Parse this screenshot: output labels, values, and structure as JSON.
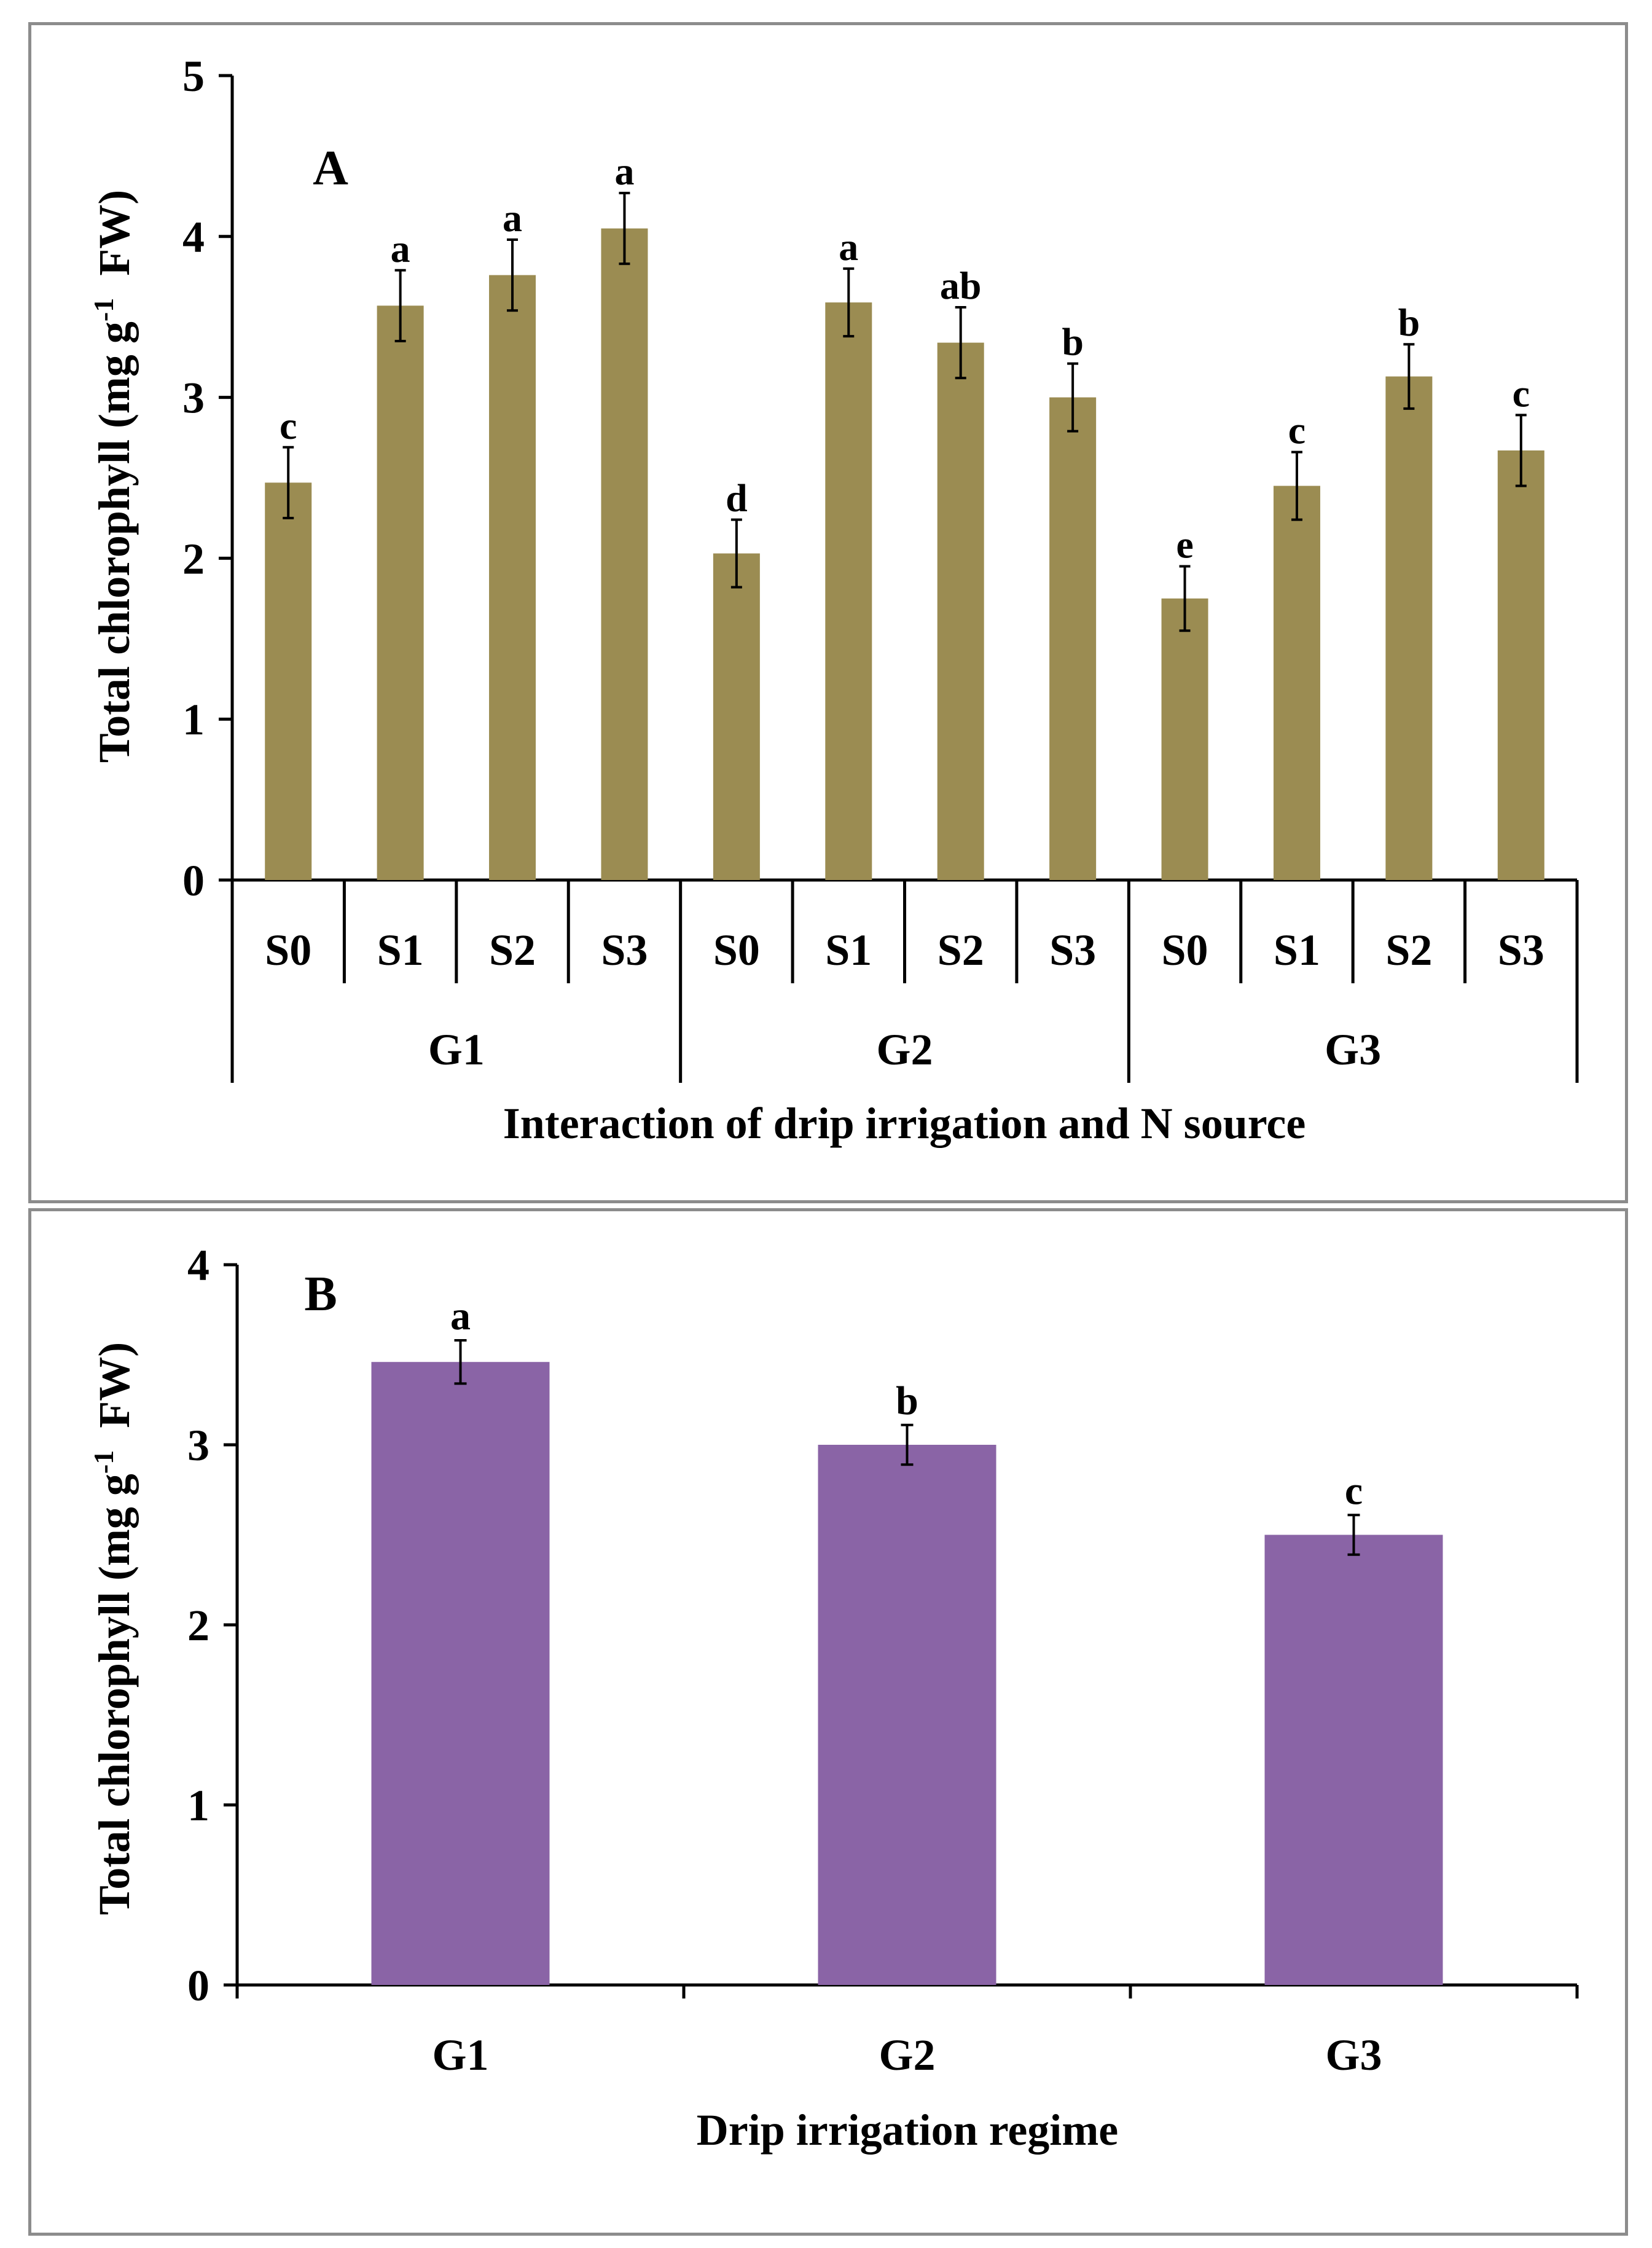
{
  "chart_data": [
    {
      "type": "bar",
      "panel_label": "A",
      "ylabel": "Total chlorophyll (mg g",
      "ylabel_sup": "-1",
      "ylabel_tail": "FW)",
      "xlabel": "Interaction  of drip irrigation and N source",
      "ylim": [
        0,
        5
      ],
      "yticks": [
        "0",
        "1",
        "2",
        "3",
        "4",
        "5"
      ],
      "groups": [
        "G1",
        "G2",
        "G3"
      ],
      "subcategories": [
        "S0",
        "S1",
        "S2",
        "S3"
      ],
      "bar_color": "#9b8c52",
      "values": [
        2.47,
        3.57,
        3.76,
        4.05,
        2.03,
        3.59,
        3.34,
        3.0,
        1.75,
        2.45,
        3.13,
        2.67
      ],
      "errors": [
        0.22,
        0.22,
        0.22,
        0.22,
        0.21,
        0.21,
        0.22,
        0.21,
        0.2,
        0.21,
        0.2,
        0.22
      ],
      "letters": [
        "c",
        "a",
        "a",
        "a",
        "d",
        "a",
        "ab",
        "b",
        "e",
        "c",
        "b",
        "c"
      ]
    },
    {
      "type": "bar",
      "panel_label": "B",
      "ylabel": "Total chlorophyll (mg g",
      "ylabel_sup": "-1",
      "ylabel_tail": "FW)",
      "xlabel": "Drip irrigation regime",
      "ylim": [
        0,
        4
      ],
      "yticks": [
        "0",
        "1",
        "2",
        "3",
        "4"
      ],
      "categories": [
        "G1",
        "G2",
        "G3"
      ],
      "bar_color": "#8a64a6",
      "values": [
        3.46,
        3.0,
        2.5
      ],
      "errors": [
        0.12,
        0.11,
        0.11
      ],
      "letters": [
        "a",
        "b",
        "c"
      ]
    }
  ]
}
